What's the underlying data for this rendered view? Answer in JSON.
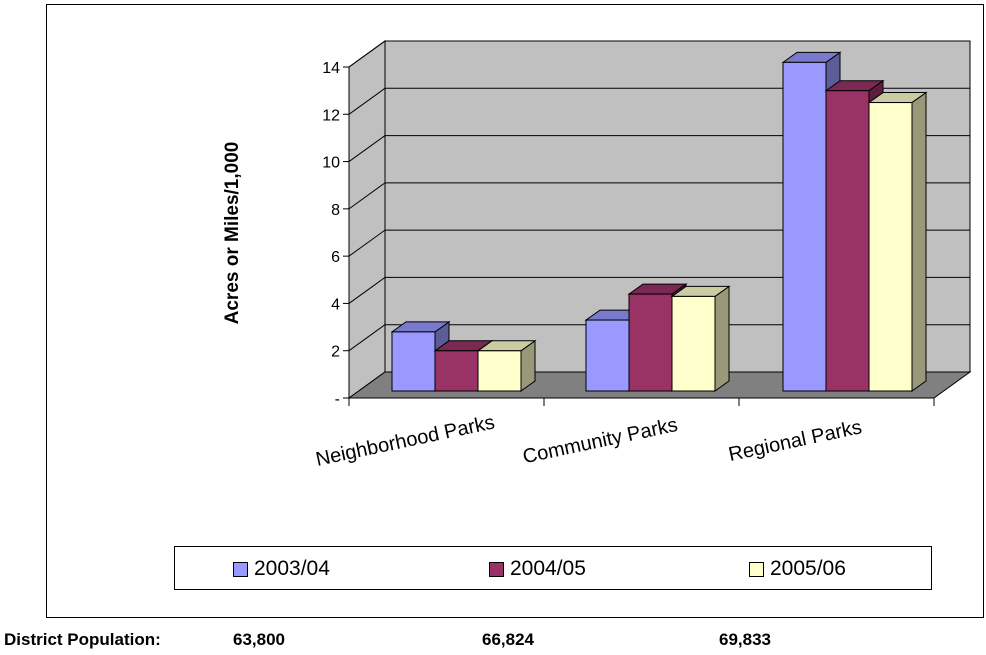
{
  "chart_data": {
    "type": "bar",
    "title": "",
    "xlabel": "",
    "ylabel": "Acres or Miles/1,000",
    "ylim": [
      0,
      14
    ],
    "yticks": [
      "-",
      "2",
      "4",
      "6",
      "8",
      "10",
      "12",
      "14"
    ],
    "categories": [
      "Neighborhood Parks",
      "Community Parks",
      "Regional Parks"
    ],
    "series": [
      {
        "name": "2003/04",
        "values": [
          2.5,
          3.0,
          13.9
        ],
        "color": "#9999ff"
      },
      {
        "name": "2004/05",
        "values": [
          1.7,
          4.1,
          12.7
        ],
        "color": "#993366"
      },
      {
        "name": "2005/06",
        "values": [
          1.7,
          4.0,
          12.2
        ],
        "color": "#ffffcc"
      }
    ],
    "grid": true,
    "legend_position": "bottom"
  },
  "population": {
    "label": "District Population:",
    "values": [
      "63,800",
      "66,824",
      "69,833"
    ]
  }
}
